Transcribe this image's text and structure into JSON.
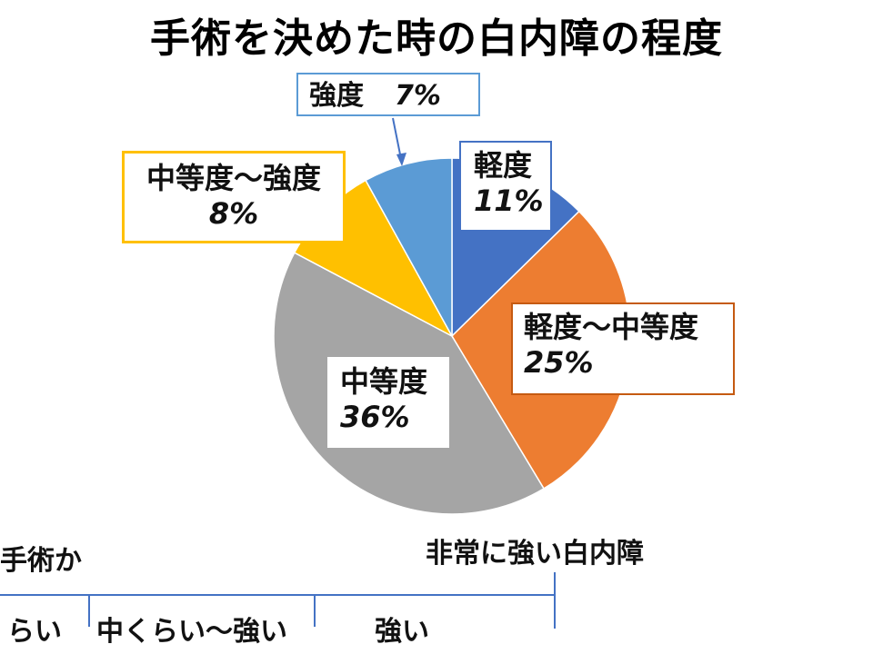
{
  "title": "手術を決めた時の白内障の程度",
  "chart_data": {
    "type": "pie",
    "title": "手術を決めた時の白内障の程度",
    "slices": [
      {
        "label": "軽度",
        "value": 11,
        "value_text": "11%",
        "color": "#4472C4"
      },
      {
        "label": "軽度～中等度",
        "value": 25,
        "value_text": "25%",
        "color": "#ED7D31"
      },
      {
        "label": "中等度",
        "value": 36,
        "value_text": "36%",
        "color": "#A5A5A5"
      },
      {
        "label": "中等度～強度",
        "value": 8,
        "value_text": "8%",
        "color": "#FFC000"
      },
      {
        "label": "強度",
        "value": 7,
        "value_text": "7%",
        "color": "#5B9BD5"
      }
    ]
  },
  "strong_label": {
    "name": "強度",
    "pct": "7%"
  },
  "scale": {
    "left_top": "手術か",
    "right_top": "非常に強い白内障",
    "segments": [
      "らい",
      "中くらい～強い",
      "強い"
    ],
    "line_color": "#4472C4"
  }
}
